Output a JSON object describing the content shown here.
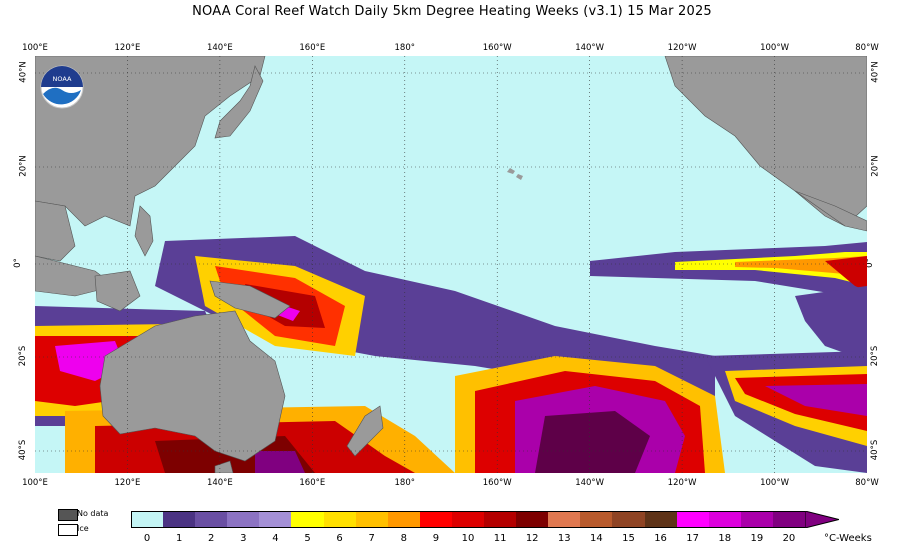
{
  "title": "NOAA Coral Reef Watch Daily 5km Degree Heating Weeks  (v3.1)   15 Mar 2025",
  "lon_ticks": [
    "100°E",
    "120°E",
    "140°E",
    "160°E",
    "180°",
    "160°W",
    "140°W",
    "120°W",
    "100°W",
    "80°W"
  ],
  "lat_ticks_left": [
    "40°N",
    "20°N",
    "0°",
    "20°S",
    "40°S"
  ],
  "lat_ticks_right": [
    "40°N",
    "20°N",
    "0°",
    "20°S",
    "40°S"
  ],
  "logo_text": "NOAA",
  "legend": {
    "nodata": "No data",
    "ice": "Ice"
  },
  "colorbar": {
    "ticks": [
      "0",
      "1",
      "2",
      "3",
      "4",
      "5",
      "6",
      "7",
      "8",
      "9",
      "10",
      "11",
      "12",
      "13",
      "14",
      "15",
      "16",
      "17",
      "18",
      "19",
      "20"
    ],
    "units": "°C-Weeks",
    "colors": [
      "#c4f5f5",
      "#4b3383",
      "#6a4fa3",
      "#8c73c3",
      "#a490d6",
      "#ffff00",
      "#ffe000",
      "#ffc000",
      "#ff9800",
      "#ff0000",
      "#dd0000",
      "#b40000",
      "#7d0000",
      "#e07850",
      "#b85a2c",
      "#8f4424",
      "#5e3318",
      "#ff00ff",
      "#dd00dd",
      "#aa00aa",
      "#800080"
    ]
  },
  "colors": {
    "ocean": "#c5f6f6",
    "land": "#9a9a9a",
    "nodata": "#555555"
  }
}
